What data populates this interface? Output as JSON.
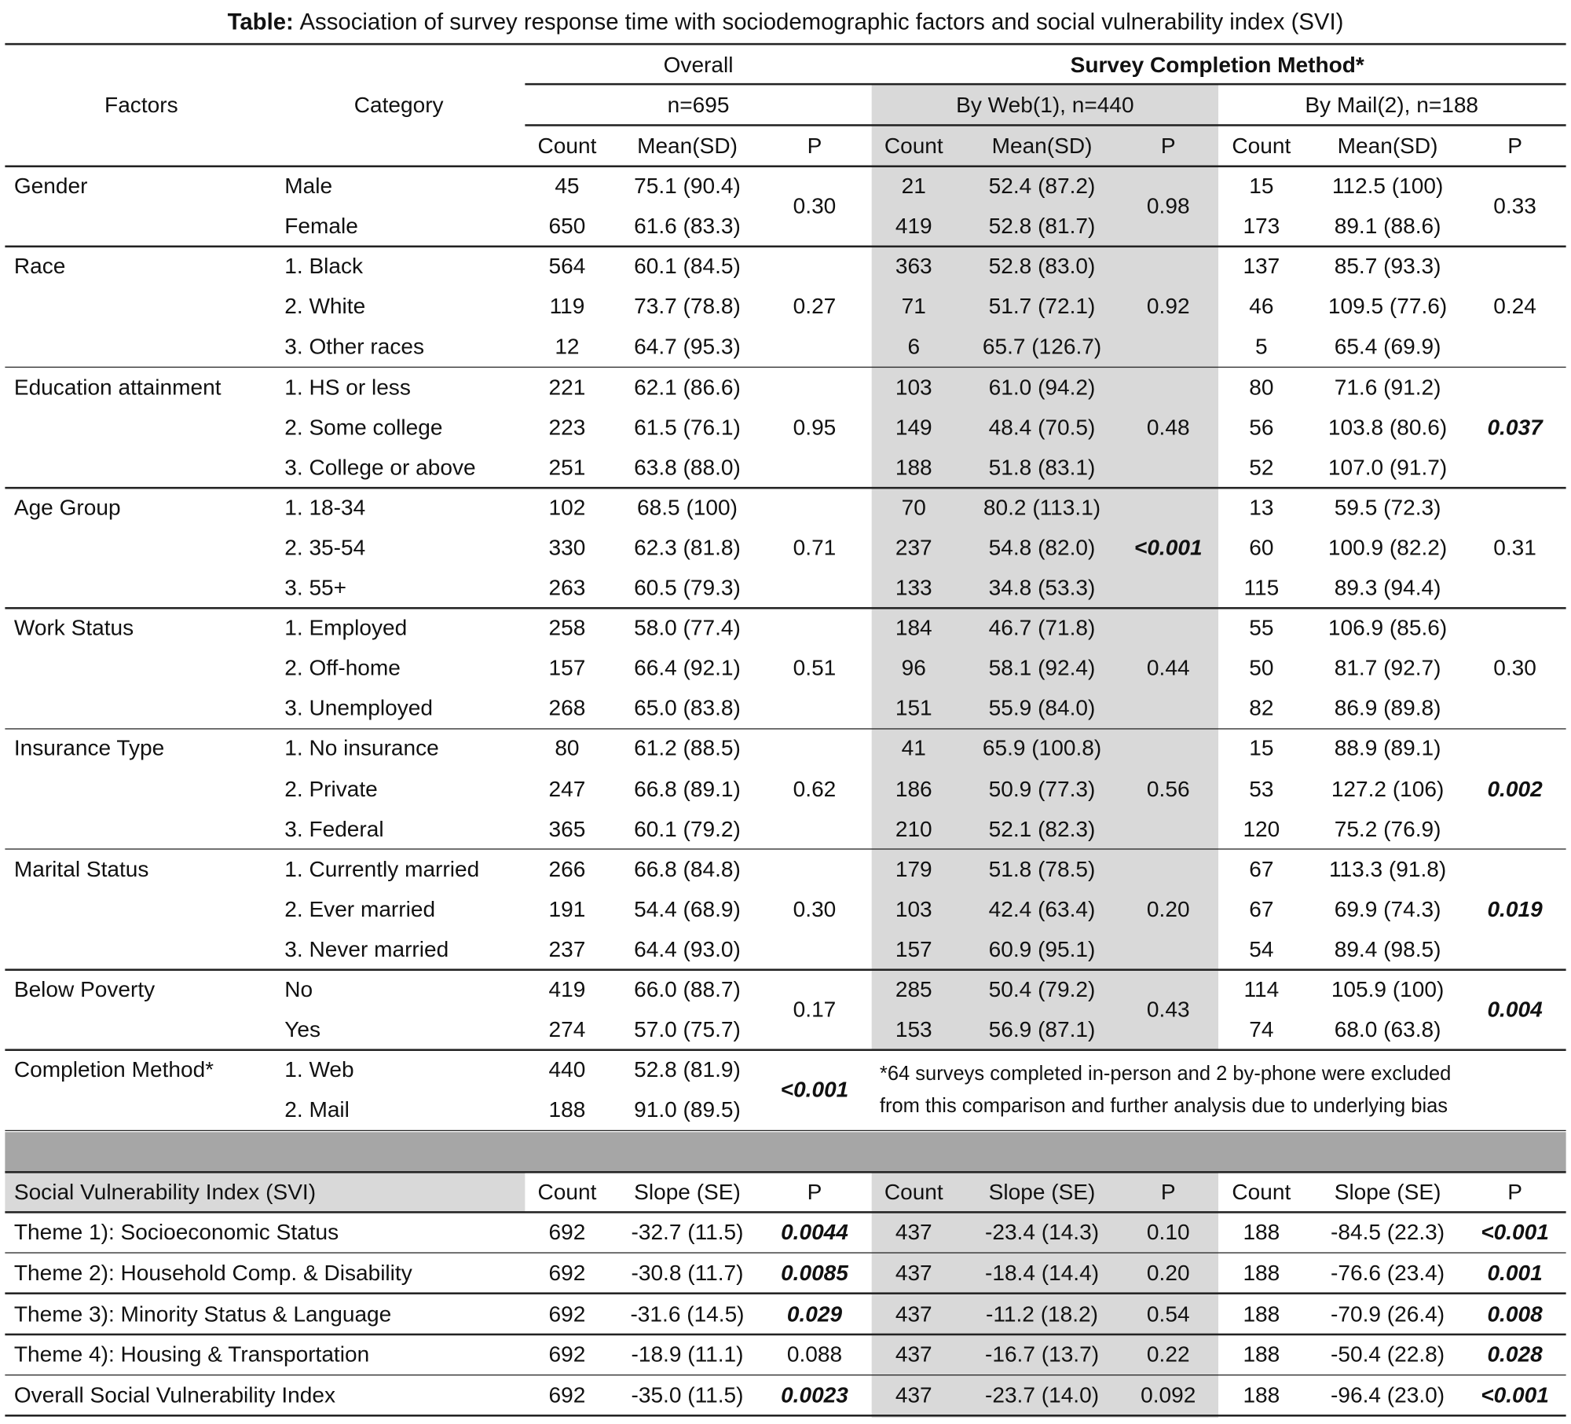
{
  "title": {
    "label": "Table:",
    "text": "Association of survey response time with sociodemographic factors and social vulnerability index (SVI)"
  },
  "header": {
    "factors": "Factors",
    "category": "Category",
    "overall": "Overall",
    "method": "Survey Completion Method*",
    "overall_n": "n=695",
    "web": "By Web(1), n=440",
    "mail": "By Mail(2), n=188",
    "columns": [
      "Count",
      "Mean(SD)",
      "P"
    ]
  },
  "groups": [
    {
      "factor": "Gender",
      "categories": [
        "Male",
        "Female"
      ],
      "overall": {
        "counts": [
          45,
          650
        ],
        "means": [
          "75.1 (90.4)",
          "61.6 (83.3)"
        ],
        "p": "0.30"
      },
      "web": {
        "counts": [
          21,
          419
        ],
        "means": [
          "52.4 (87.2)",
          "52.8 (81.7)"
        ],
        "p": "0.98"
      },
      "mail": {
        "counts": [
          15,
          173
        ],
        "means": [
          "112.5 (100)",
          "89.1 (88.6)"
        ],
        "p": "0.33"
      }
    },
    {
      "factor": "Race",
      "categories": [
        "1. Black",
        "2. White",
        "3. Other races"
      ],
      "overall": {
        "counts": [
          564,
          119,
          12
        ],
        "means": [
          "60.1 (84.5)",
          "73.7 (78.8)",
          "64.7 (95.3)"
        ],
        "p": "0.27"
      },
      "web": {
        "counts": [
          363,
          71,
          6
        ],
        "means": [
          "52.8 (83.0)",
          "51.7 (72.1)",
          "65.7 (126.7)"
        ],
        "p": "0.92"
      },
      "mail": {
        "counts": [
          137,
          46,
          5
        ],
        "means": [
          "85.7 (93.3)",
          "109.5 (77.6)",
          "65.4 (69.9)"
        ],
        "p": "0.24"
      }
    },
    {
      "factor": "Education attainment",
      "categories": [
        "1. HS or less",
        "2. Some college",
        "3. College or above"
      ],
      "overall": {
        "counts": [
          221,
          223,
          251
        ],
        "means": [
          "62.1 (86.6)",
          "61.5 (76.1)",
          "63.8 (88.0)"
        ],
        "p": "0.95"
      },
      "web": {
        "counts": [
          103,
          149,
          188
        ],
        "means": [
          "61.0 (94.2)",
          "48.4 (70.5)",
          "51.8 (83.1)"
        ],
        "p": "0.48"
      },
      "mail": {
        "counts": [
          80,
          56,
          52
        ],
        "means": [
          "71.6 (91.2)",
          "103.8 (80.6)",
          "107.0 (91.7)"
        ],
        "p": "0.037",
        "bold": true
      }
    },
    {
      "factor": "Age Group",
      "categories": [
        "1. 18-34",
        "2. 35-54",
        "3. 55+"
      ],
      "overall": {
        "counts": [
          102,
          330,
          263
        ],
        "means": [
          "68.5 (100)",
          "62.3 (81.8)",
          "60.5 (79.3)"
        ],
        "p": "0.71"
      },
      "web": {
        "counts": [
          70,
          237,
          133
        ],
        "means": [
          "80.2 (113.1)",
          "54.8 (82.0)",
          "34.8 (53.3)"
        ],
        "p": "<0.001",
        "bold": true
      },
      "mail": {
        "counts": [
          13,
          60,
          115
        ],
        "means": [
          "59.5 (72.3)",
          "100.9 (82.2)",
          "89.3 (94.4)"
        ],
        "p": "0.31"
      }
    },
    {
      "factor": "Work Status",
      "categories": [
        "1. Employed",
        "2. Off-home",
        "3. Unemployed"
      ],
      "overall": {
        "counts": [
          258,
          157,
          268
        ],
        "means": [
          "58.0 (77.4)",
          "66.4 (92.1)",
          "65.0 (83.8)"
        ],
        "p": "0.51"
      },
      "web": {
        "counts": [
          184,
          96,
          151
        ],
        "means": [
          "46.7 (71.8)",
          "58.1 (92.4)",
          "55.9 (84.0)"
        ],
        "p": "0.44"
      },
      "mail": {
        "counts": [
          55,
          50,
          82
        ],
        "means": [
          "106.9 (85.6)",
          "81.7 (92.7)",
          "86.9 (89.8)"
        ],
        "p": "0.30"
      }
    },
    {
      "factor": "Insurance Type",
      "categories": [
        "1. No insurance",
        "2. Private",
        "3. Federal"
      ],
      "overall": {
        "counts": [
          80,
          247,
          365
        ],
        "means": [
          "61.2 (88.5)",
          "66.8 (89.1)",
          "60.1 (79.2)"
        ],
        "p": "0.62"
      },
      "web": {
        "counts": [
          41,
          186,
          210
        ],
        "means": [
          "65.9 (100.8)",
          "50.9 (77.3)",
          "52.1 (82.3)"
        ],
        "p": "0.56"
      },
      "mail": {
        "counts": [
          15,
          53,
          120
        ],
        "means": [
          "88.9 (89.1)",
          "127.2 (106)",
          "75.2 (76.9)"
        ],
        "p": "0.002",
        "bold": true
      }
    },
    {
      "factor": "Marital Status",
      "categories": [
        "1. Currently married",
        "2. Ever married",
        "3. Never married"
      ],
      "overall": {
        "counts": [
          266,
          191,
          237
        ],
        "means": [
          "66.8 (84.8)",
          "54.4 (68.9)",
          "64.4 (93.0)"
        ],
        "p": "0.30"
      },
      "web": {
        "counts": [
          179,
          103,
          157
        ],
        "means": [
          "51.8 (78.5)",
          "42.4 (63.4)",
          "60.9 (95.1)"
        ],
        "p": "0.20"
      },
      "mail": {
        "counts": [
          67,
          67,
          54
        ],
        "means": [
          "113.3 (91.8)",
          "69.9 (74.3)",
          "89.4 (98.5)"
        ],
        "p": "0.019",
        "bold": true
      }
    },
    {
      "factor": "Below Poverty",
      "categories": [
        "No",
        "Yes"
      ],
      "overall": {
        "counts": [
          419,
          274
        ],
        "means": [
          "66.0 (88.7)",
          "57.0 (75.7)"
        ],
        "p": "0.17"
      },
      "web": {
        "counts": [
          285,
          153
        ],
        "means": [
          "50.4 (79.2)",
          "56.9 (87.1)"
        ],
        "p": "0.43"
      },
      "mail": {
        "counts": [
          114,
          74
        ],
        "means": [
          "105.9 (100)",
          "68.0 (63.8)"
        ],
        "p": "0.004",
        "bold": true
      }
    },
    {
      "factor": "Completion Method*",
      "categories": [
        "1. Web",
        "2. Mail"
      ],
      "overall": {
        "counts": [
          440,
          188
        ],
        "means": [
          "52.8 (81.9)",
          "91.0 (89.5)"
        ],
        "p": "<0.001",
        "bold": true
      },
      "note": [
        "*64 surveys completed in-person and 2 by-phone were excluded",
        "from this comparison and further analysis due to underlying bias"
      ]
    }
  ],
  "svi": {
    "header": "Social Vulnerability Index (SVI)",
    "columns": [
      "Count",
      "Slope (SE)",
      "P"
    ],
    "rows": [
      {
        "label": "Theme 1): Socioeconomic Status",
        "overall": {
          "count": 692,
          "slope": "-32.7 (11.5)",
          "p": "0.0044",
          "bold": true
        },
        "web": {
          "count": 437,
          "slope": "-23.4 (14.3)",
          "p": "0.10"
        },
        "mail": {
          "count": 188,
          "slope": "-84.5 (22.3)",
          "p": "<0.001",
          "bold": true
        }
      },
      {
        "label": "Theme 2): Household Comp. & Disability",
        "overall": {
          "count": 692,
          "slope": "-30.8 (11.7)",
          "p": "0.0085",
          "bold": true
        },
        "web": {
          "count": 437,
          "slope": "-18.4 (14.4)",
          "p": "0.20"
        },
        "mail": {
          "count": 188,
          "slope": "-76.6 (23.4)",
          "p": "0.001",
          "bold": true
        }
      },
      {
        "label": "Theme 3): Minority Status & Language",
        "overall": {
          "count": 692,
          "slope": "-31.6 (14.5)",
          "p": "0.029",
          "bold": true
        },
        "web": {
          "count": 437,
          "slope": "-11.2 (18.2)",
          "p": "0.54"
        },
        "mail": {
          "count": 188,
          "slope": "-70.9 (26.4)",
          "p": "0.008",
          "bold": true
        }
      },
      {
        "label": "Theme 4): Housing & Transportation",
        "overall": {
          "count": 692,
          "slope": "-18.9 (11.1)",
          "p": "0.088"
        },
        "web": {
          "count": 437,
          "slope": "-16.7 (13.7)",
          "p": "0.22"
        },
        "mail": {
          "count": 188,
          "slope": "-50.4 (22.8)",
          "p": "0.028",
          "bold": true
        }
      },
      {
        "label": "Overall Social Vulnerability Index",
        "overall": {
          "count": 692,
          "slope": "-35.0 (11.5)",
          "p": "0.0023",
          "bold": true
        },
        "web": {
          "count": 437,
          "slope": "-23.7 (14.0)",
          "p": "0.092"
        },
        "mail": {
          "count": 188,
          "slope": "-96.4 (23.0)",
          "p": "<0.001",
          "bold": true
        }
      }
    ]
  }
}
